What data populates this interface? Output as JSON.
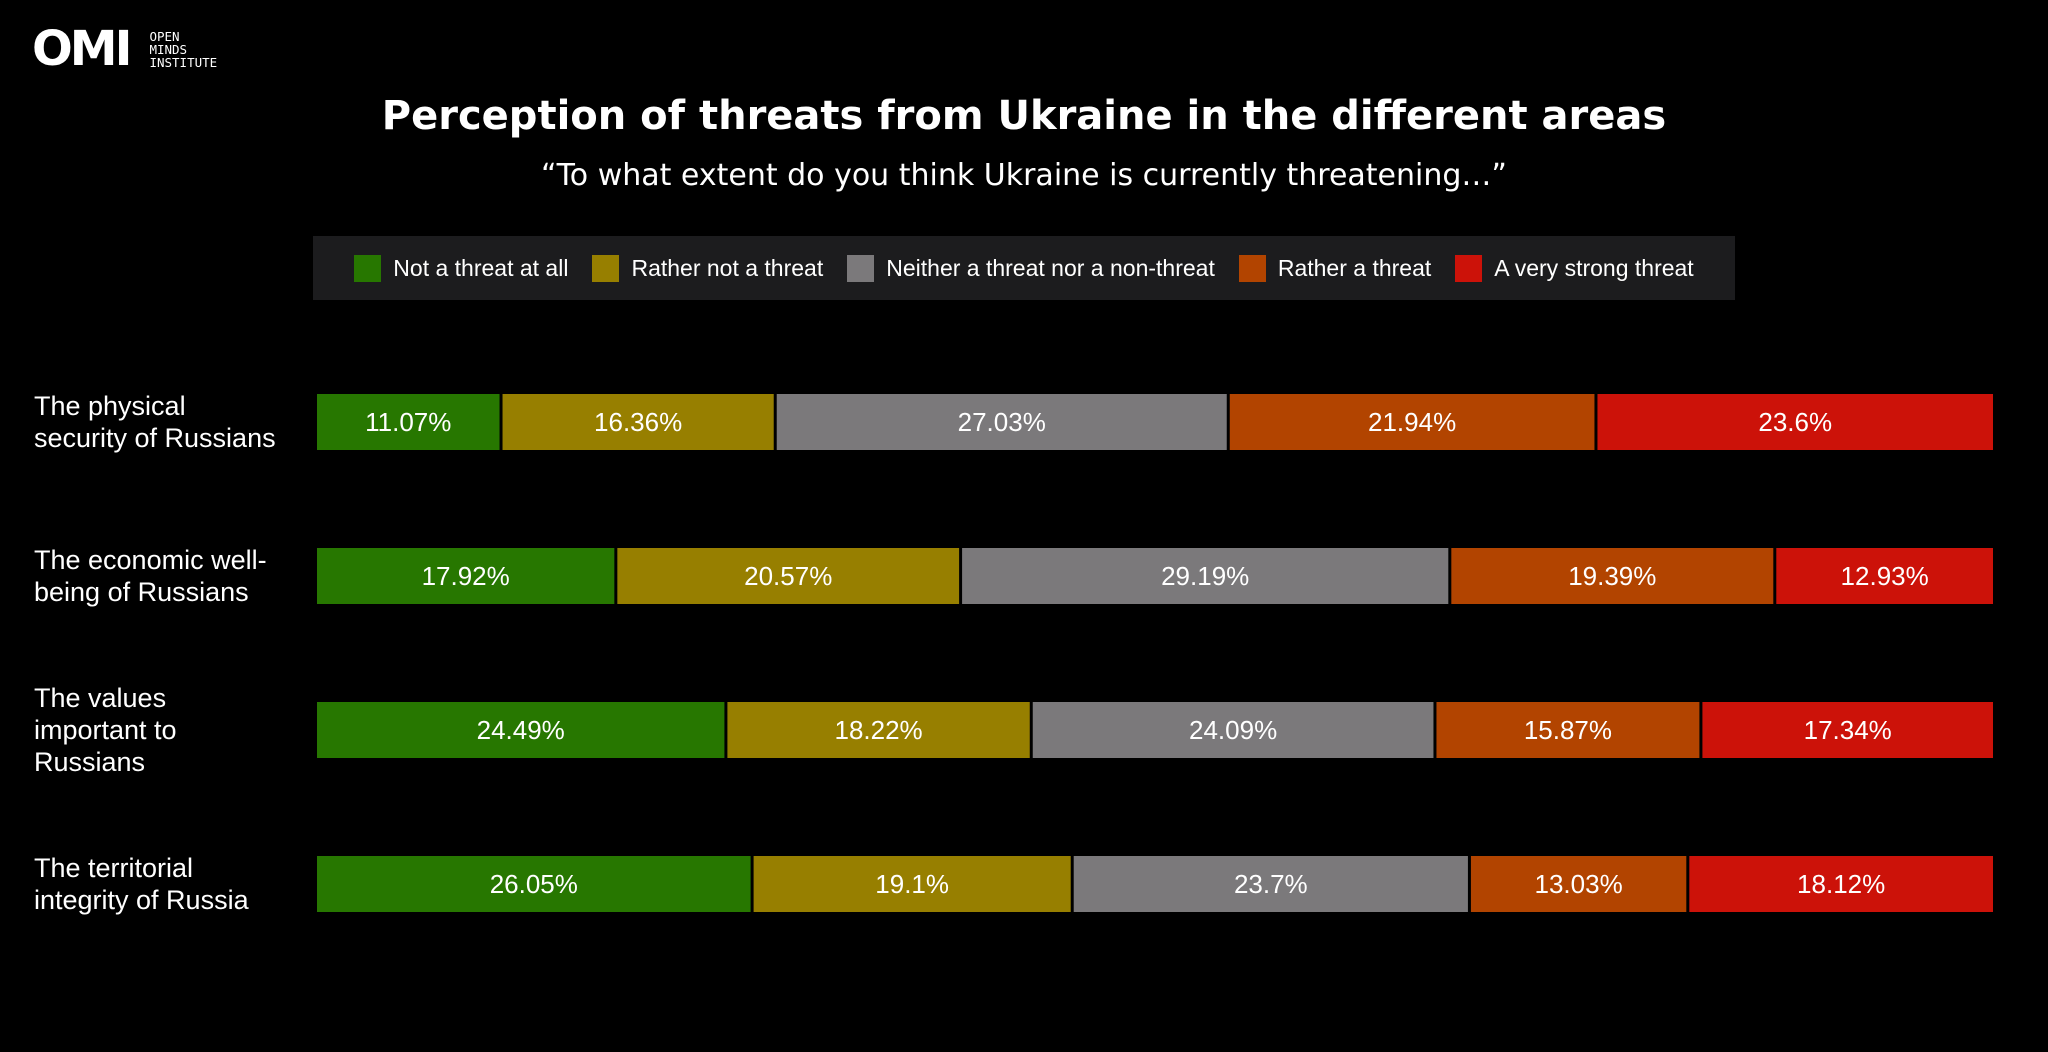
{
  "logo": {
    "mark": "OMI",
    "line1": "OPEN",
    "line2": "MINDS",
    "line3": "INSTITUTE"
  },
  "chart_data": {
    "type": "bar",
    "orientation": "horizontal",
    "stacked": true,
    "normalized": true,
    "title": "Perception of threats from Ukraine in the different areas",
    "subtitle": "“To what extent do you think Ukraine is currently threatening…”",
    "xlim": [
      0,
      100
    ],
    "legend_position": "top",
    "categories": [
      "The physical security of Russians",
      "The economic well-being of Russians",
      "The values important to Russians",
      "The territorial integrity of Russia"
    ],
    "category_lines": [
      [
        "The physical",
        "security of Russians"
      ],
      [
        "The economic well-",
        "being of Russians"
      ],
      [
        "The values",
        "important to",
        "Russians"
      ],
      [
        "The territorial",
        "integrity of Russia"
      ]
    ],
    "series": [
      {
        "name": "Not a threat at all",
        "color": "#277700",
        "values": [
          11.07,
          17.92,
          24.49,
          26.05
        ],
        "labels": [
          "11.07%",
          "17.92%",
          "24.49%",
          "26.05%"
        ]
      },
      {
        "name": "Rather not a threat",
        "color": "#977f00",
        "values": [
          16.36,
          20.57,
          18.22,
          19.1
        ],
        "labels": [
          "16.36%",
          "20.57%",
          "18.22%",
          "19.1%"
        ]
      },
      {
        "name": "Neither a threat nor a non-threat",
        "color": "#7b797b",
        "values": [
          27.03,
          29.19,
          24.09,
          23.7
        ],
        "labels": [
          "27.03%",
          "29.19%",
          "24.09%",
          "23.7%"
        ]
      },
      {
        "name": "Rather a threat",
        "color": "#b24400",
        "values": [
          21.94,
          19.39,
          15.87,
          13.03
        ],
        "labels": [
          "21.94%",
          "19.39%",
          "15.87%",
          "13.03%"
        ]
      },
      {
        "name": "A very strong threat",
        "color": "#cc1209",
        "values": [
          23.6,
          12.93,
          17.34,
          18.12
        ],
        "labels": [
          "23.6%",
          "12.93%",
          "17.34%",
          "18.12%"
        ]
      }
    ]
  }
}
